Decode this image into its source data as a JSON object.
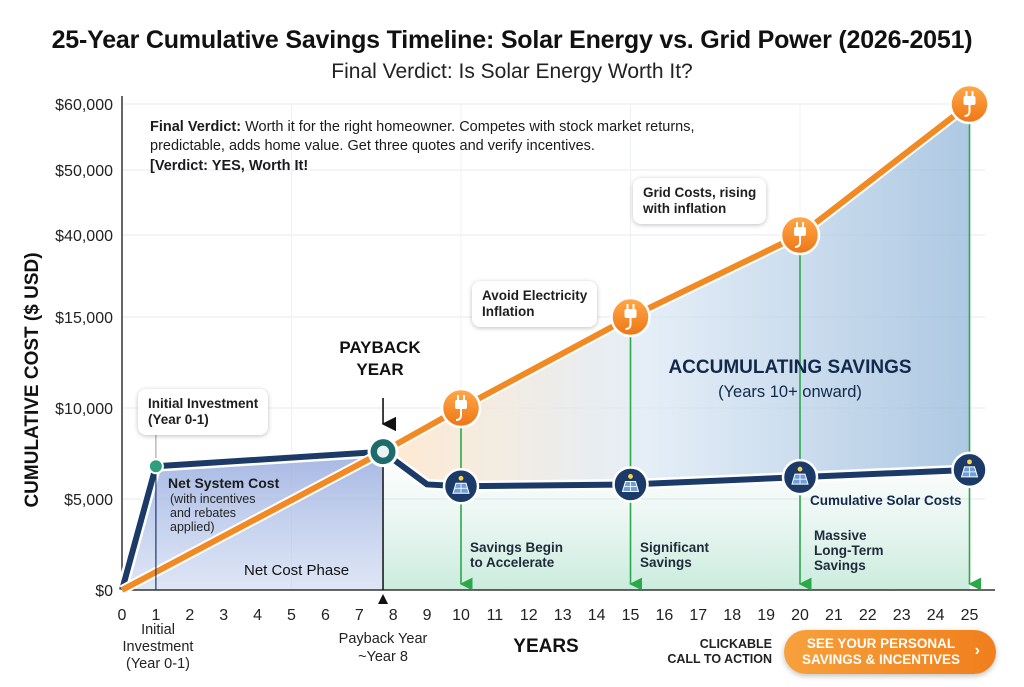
{
  "header": {
    "title": "25-Year Cumulative Savings Timeline: Solar Energy vs. Grid Power (2026-2051)",
    "subtitle": "Final Verdict: Is Solar Energy Worth It?"
  },
  "verdict": {
    "label": "Final Verdict:",
    "text": " Worth it for the right homeowner. Competes with stock market returns, predictable, adds home value. Get three quotes and verify incentives.",
    "result": "[Verdict: YES, Worth It!"
  },
  "chart_data": {
    "type": "line",
    "title": "25-Year Cumulative Savings Timeline: Solar Energy vs. Grid Power (2026-2051)",
    "subtitle": "Final Verdict: Is Solar Energy Worth It?",
    "xlabel": "YEARS",
    "ylabel": "CUMULATIVE COST ($ USD)",
    "x_ticks": [
      0,
      1,
      2,
      3,
      4,
      5,
      6,
      7,
      8,
      9,
      10,
      11,
      12,
      13,
      14,
      15,
      16,
      17,
      18,
      19,
      20,
      21,
      22,
      23,
      24,
      25
    ],
    "y_tick_labels": [
      "$0",
      "$5,000",
      "$10,000",
      "$15,000",
      "$40,000",
      "$50,000",
      "$60,000"
    ],
    "xlim": [
      0,
      25
    ],
    "grid": true,
    "series": [
      {
        "name": "Grid Costs, rising with inflation",
        "color": "#f28a23",
        "x": [
          0,
          7.7,
          10,
          15,
          20,
          25
        ],
        "y": [
          0,
          7600,
          10000,
          15000,
          40000,
          60000
        ]
      },
      {
        "name": "Cumulative Solar Costs",
        "color": "#1b3a68",
        "x": [
          0,
          1,
          7.7,
          9,
          10,
          15,
          20,
          25
        ],
        "y": [
          0,
          6800,
          7600,
          5800,
          5700,
          5800,
          6200,
          6600
        ]
      }
    ],
    "payback_year": 7.7,
    "annotations": {
      "payback_title": [
        "PAYBACK",
        "YEAR"
      ],
      "payback_axis": [
        "Payback Year",
        "~Year 8"
      ],
      "initial_axis": [
        "Initial",
        "Investment",
        "(Year 0-1)"
      ],
      "initial_callout": [
        "Initial Investment",
        "(Year 0-1)"
      ],
      "net_system_cost": "Net System Cost",
      "net_system_cost_note": [
        "(with incentives",
        "and rebates",
        "applied)"
      ],
      "net_cost_phase": "Net Cost Phase",
      "accumulating": "ACCUMULATING SAVINGS",
      "accumulating_sub": "(Years 10+ onward)",
      "avoid_inflation": [
        "Avoid Electricity",
        "Inflation"
      ],
      "grid_rising": [
        "Grid Costs, rising",
        "with inflation"
      ],
      "cumulative_solar": "Cumulative Solar Costs",
      "savings_begin": [
        "Savings Begin",
        "to Accelerate"
      ],
      "significant": [
        "Significant",
        "Savings"
      ],
      "massive": [
        "Massive",
        "Long-Term",
        "Savings"
      ]
    }
  },
  "cta": {
    "label": [
      "CLICKABLE",
      "CALL TO ACTION"
    ],
    "button": [
      "SEE YOUR PERSONAL",
      "SAVINGS & INCENTIVES"
    ],
    "chevron": "›"
  },
  "colors": {
    "grid_line": "#f28a23",
    "solar_line": "#1b3a68",
    "savings_marker": "#2aa84a",
    "payback": "#1d6b6b"
  },
  "icons": [
    "plug-icon",
    "solar-panel-icon",
    "chevron-right-icon"
  ]
}
